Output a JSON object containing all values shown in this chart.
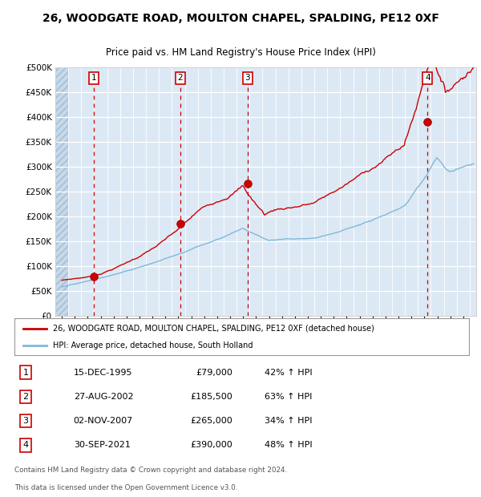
{
  "title_line1": "26, WOODGATE ROAD, MOULTON CHAPEL, SPALDING, PE12 0XF",
  "title_line2": "Price paid vs. HM Land Registry's House Price Index (HPI)",
  "xlim_start": 1993.0,
  "xlim_end": 2025.5,
  "ylim_min": 0,
  "ylim_max": 500000,
  "background_color": "#dce9f5",
  "grid_color": "#ffffff",
  "red_line_color": "#cc0000",
  "blue_line_color": "#80b8d8",
  "dashed_line_color": "#cc0000",
  "sale_points": [
    {
      "year": 1995.958,
      "price": 79000,
      "label": "1"
    },
    {
      "year": 2002.653,
      "price": 185500,
      "label": "2"
    },
    {
      "year": 2007.836,
      "price": 265000,
      "label": "3"
    },
    {
      "year": 2021.747,
      "price": 390000,
      "label": "4"
    }
  ],
  "legend_line1": "26, WOODGATE ROAD, MOULTON CHAPEL, SPALDING, PE12 0XF (detached house)",
  "legend_line2": "HPI: Average price, detached house, South Holland",
  "table_rows": [
    {
      "num": "1",
      "date": "15-DEC-1995",
      "price": "£79,000",
      "hpi": "42% ↑ HPI"
    },
    {
      "num": "2",
      "date": "27-AUG-2002",
      "price": "£185,500",
      "hpi": "63% ↑ HPI"
    },
    {
      "num": "3",
      "date": "02-NOV-2007",
      "price": "£265,000",
      "hpi": "34% ↑ HPI"
    },
    {
      "num": "4",
      "date": "30-SEP-2021",
      "price": "£390,000",
      "hpi": "48% ↑ HPI"
    }
  ],
  "footer_line1": "Contains HM Land Registry data © Crown copyright and database right 2024.",
  "footer_line2": "This data is licensed under the Open Government Licence v3.0."
}
